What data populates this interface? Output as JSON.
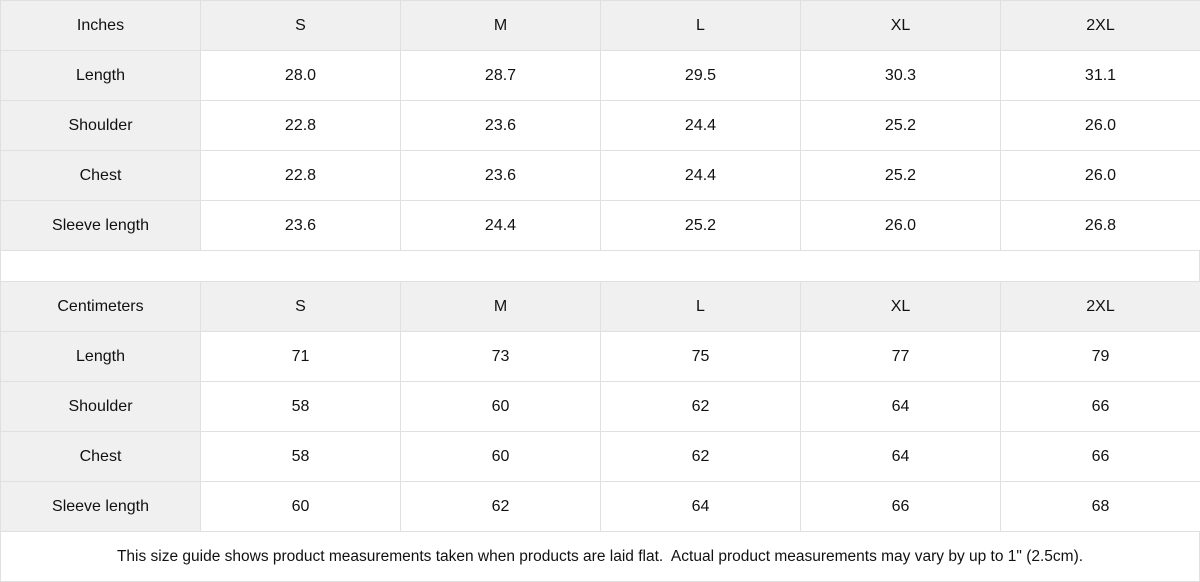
{
  "sizes": [
    "S",
    "M",
    "L",
    "XL",
    "2XL"
  ],
  "inches": {
    "unit_label": "Inches",
    "rows": [
      {
        "label": "Length",
        "values": [
          "28.0",
          "28.7",
          "29.5",
          "30.3",
          "31.1"
        ]
      },
      {
        "label": "Shoulder",
        "values": [
          "22.8",
          "23.6",
          "24.4",
          "25.2",
          "26.0"
        ]
      },
      {
        "label": "Chest",
        "values": [
          "22.8",
          "23.6",
          "24.4",
          "25.2",
          "26.0"
        ]
      },
      {
        "label": "Sleeve length",
        "values": [
          "23.6",
          "24.4",
          "25.2",
          "26.0",
          "26.8"
        ]
      }
    ]
  },
  "centimeters": {
    "unit_label": "Centimeters",
    "rows": [
      {
        "label": "Length",
        "values": [
          "71",
          "73",
          "75",
          "77",
          "79"
        ]
      },
      {
        "label": "Shoulder",
        "values": [
          "58",
          "60",
          "62",
          "64",
          "66"
        ]
      },
      {
        "label": "Chest",
        "values": [
          "58",
          "60",
          "62",
          "64",
          "66"
        ]
      },
      {
        "label": "Sleeve length",
        "values": [
          "60",
          "62",
          "64",
          "66",
          "68"
        ]
      }
    ]
  },
  "note": "This size guide shows product measurements taken when products are laid flat.  Actual product measurements may vary by up to 1\" (2.5cm).",
  "colors": {
    "header_bg": "#f0f0f0",
    "border": "#e0e0e0",
    "text": "#111111"
  }
}
